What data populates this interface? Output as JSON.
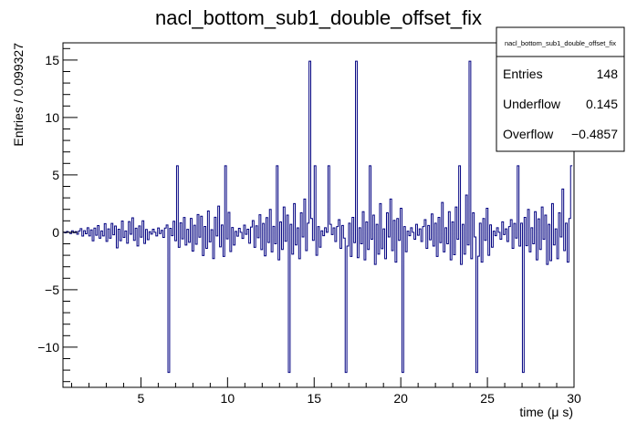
{
  "chart_data": {
    "type": "histogram",
    "title": "nacl_bottom_sub1_double_offset_fix",
    "xlabel": "time (μ s)",
    "ylabel": "Entries / 0.099327",
    "xlim": [
      0.5,
      30
    ],
    "ylim": [
      -13.5,
      16.5
    ],
    "bin_width": 0.099327,
    "x_ticks": [
      5,
      10,
      15,
      20,
      25,
      30
    ],
    "y_ticks": [
      -10,
      -5,
      0,
      5,
      10,
      15
    ],
    "grid": false,
    "line_color": "#000080",
    "stats_box": {
      "title": "nacl_bottom_sub1_double_offset_fix",
      "rows": [
        {
          "label": "Entries",
          "value": "148"
        },
        {
          "label": "Underflow",
          "value": "0.145"
        },
        {
          "label": "Overflow",
          "value": "−0.4857"
        }
      ]
    },
    "seed_noise": [
      0.1,
      -0.3,
      0.4,
      0.0,
      -0.6,
      0.7,
      -0.2,
      0.3,
      -0.8,
      0.5,
      1.1,
      -1.4,
      0.6,
      -0.5,
      1.6,
      -1.2,
      0.8,
      -2.1,
      1.3,
      -0.9,
      2.0,
      -1.7,
      0.4,
      -1.0,
      1.8,
      -2.4,
      0.9,
      -1.5,
      2.2,
      -0.6,
      1.5,
      -2.8,
      0.7,
      -1.9,
      2.5,
      -1.1,
      0.3,
      -2.3,
      1.7,
      -0.4,
      2.9,
      -1.6,
      0.8,
      -2.6,
      1.2,
      -0.7,
      2.1,
      -2.0,
      0.5,
      -1.3
    ],
    "spikes": [
      {
        "x": 6.6,
        "y": -12.2
      },
      {
        "x": 7.1,
        "y": 5.8
      },
      {
        "x": 9.9,
        "y": 5.8
      },
      {
        "x": 12.9,
        "y": 5.8
      },
      {
        "x": 13.6,
        "y": -12.2
      },
      {
        "x": 14.8,
        "y": 14.9
      },
      {
        "x": 15.1,
        "y": 5.8
      },
      {
        "x": 15.8,
        "y": 5.8
      },
      {
        "x": 16.8,
        "y": -12.2
      },
      {
        "x": 17.4,
        "y": 14.9
      },
      {
        "x": 18.2,
        "y": 5.8
      },
      {
        "x": 20.1,
        "y": -12.2
      },
      {
        "x": 23.4,
        "y": 5.8
      },
      {
        "x": 24.0,
        "y": 14.9
      },
      {
        "x": 24.4,
        "y": -12.2
      },
      {
        "x": 26.8,
        "y": 5.8
      },
      {
        "x": 27.1,
        "y": -12.2
      },
      {
        "x": 29.9,
        "y": 5.8
      }
    ]
  }
}
